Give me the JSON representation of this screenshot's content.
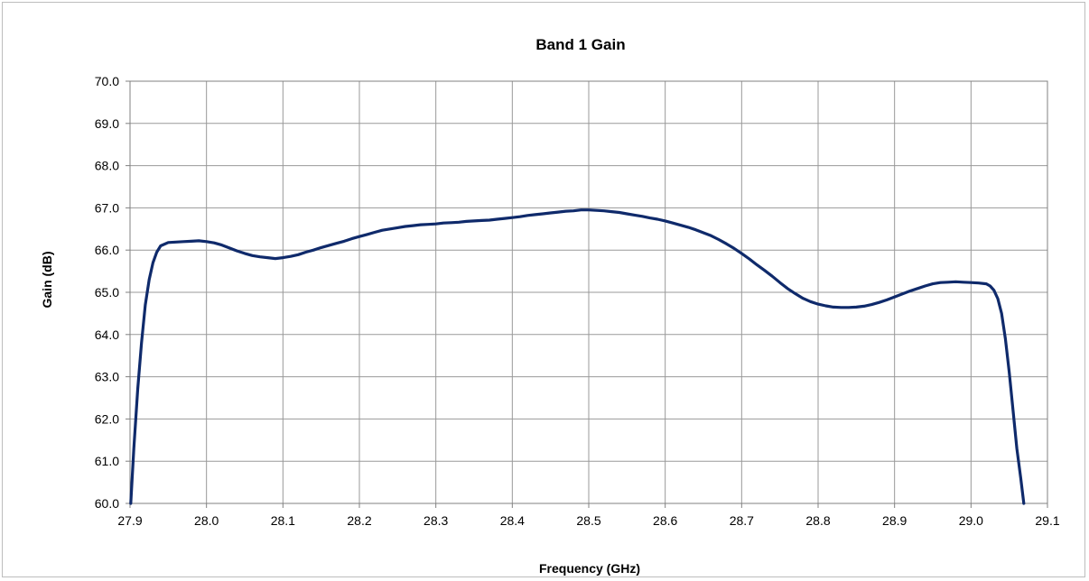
{
  "chart_data": {
    "type": "line",
    "title": "Band 1 Gain",
    "xlabel": "Frequency (GHz)",
    "ylabel": "Gain (dB)",
    "xlim": [
      27.9,
      29.1
    ],
    "ylim": [
      60.0,
      70.0
    ],
    "x_ticks": [
      "27.9",
      "28.0",
      "28.1",
      "28.2",
      "28.3",
      "28.4",
      "28.5",
      "28.6",
      "28.7",
      "28.8",
      "28.9",
      "29.0",
      "29.1"
    ],
    "y_ticks": [
      "60.0",
      "61.0",
      "62.0",
      "63.0",
      "64.0",
      "65.0",
      "66.0",
      "67.0",
      "68.0",
      "69.0",
      "70.0"
    ],
    "grid": true,
    "legend": "none",
    "series": [
      {
        "color": "#0f2a6b",
        "points": [
          [
            27.901,
            60.0
          ],
          [
            27.905,
            61.3
          ],
          [
            27.91,
            62.7
          ],
          [
            27.915,
            63.8
          ],
          [
            27.92,
            64.7
          ],
          [
            27.925,
            65.3
          ],
          [
            27.93,
            65.7
          ],
          [
            27.935,
            65.95
          ],
          [
            27.94,
            66.1
          ],
          [
            27.95,
            66.18
          ],
          [
            27.96,
            66.19
          ],
          [
            27.97,
            66.2
          ],
          [
            27.98,
            66.21
          ],
          [
            27.99,
            66.22
          ],
          [
            28.0,
            66.2
          ],
          [
            28.01,
            66.17
          ],
          [
            28.02,
            66.12
          ],
          [
            28.03,
            66.05
          ],
          [
            28.04,
            65.98
          ],
          [
            28.05,
            65.92
          ],
          [
            28.06,
            65.87
          ],
          [
            28.07,
            65.84
          ],
          [
            28.08,
            65.82
          ],
          [
            28.09,
            65.8
          ],
          [
            28.1,
            65.82
          ],
          [
            28.11,
            65.85
          ],
          [
            28.12,
            65.89
          ],
          [
            28.13,
            65.95
          ],
          [
            28.14,
            66.0
          ],
          [
            28.15,
            66.06
          ],
          [
            28.16,
            66.11
          ],
          [
            28.17,
            66.16
          ],
          [
            28.18,
            66.21
          ],
          [
            28.19,
            66.27
          ],
          [
            28.2,
            66.32
          ],
          [
            28.21,
            66.37
          ],
          [
            28.22,
            66.42
          ],
          [
            28.23,
            66.47
          ],
          [
            28.24,
            66.5
          ],
          [
            28.25,
            66.53
          ],
          [
            28.26,
            66.56
          ],
          [
            28.27,
            66.58
          ],
          [
            28.28,
            66.6
          ],
          [
            28.29,
            66.61
          ],
          [
            28.3,
            66.62
          ],
          [
            28.31,
            66.64
          ],
          [
            28.32,
            66.65
          ],
          [
            28.33,
            66.66
          ],
          [
            28.34,
            66.68
          ],
          [
            28.35,
            66.69
          ],
          [
            28.36,
            66.7
          ],
          [
            28.37,
            66.71
          ],
          [
            28.38,
            66.73
          ],
          [
            28.39,
            66.75
          ],
          [
            28.4,
            66.77
          ],
          [
            28.41,
            66.79
          ],
          [
            28.42,
            66.82
          ],
          [
            28.43,
            66.84
          ],
          [
            28.44,
            66.86
          ],
          [
            28.45,
            66.88
          ],
          [
            28.46,
            66.9
          ],
          [
            28.47,
            66.92
          ],
          [
            28.48,
            66.93
          ],
          [
            28.49,
            66.95
          ],
          [
            28.5,
            66.95
          ],
          [
            28.51,
            66.94
          ],
          [
            28.52,
            66.93
          ],
          [
            28.53,
            66.91
          ],
          [
            28.54,
            66.89
          ],
          [
            28.55,
            66.86
          ],
          [
            28.56,
            66.83
          ],
          [
            28.57,
            66.8
          ],
          [
            28.58,
            66.76
          ],
          [
            28.59,
            66.73
          ],
          [
            28.6,
            66.69
          ],
          [
            28.61,
            66.64
          ],
          [
            28.62,
            66.59
          ],
          [
            28.63,
            66.54
          ],
          [
            28.64,
            66.48
          ],
          [
            28.65,
            66.41
          ],
          [
            28.66,
            66.34
          ],
          [
            28.67,
            66.25
          ],
          [
            28.68,
            66.15
          ],
          [
            28.69,
            66.04
          ],
          [
            28.7,
            65.92
          ],
          [
            28.71,
            65.79
          ],
          [
            28.72,
            65.65
          ],
          [
            28.73,
            65.52
          ],
          [
            28.74,
            65.38
          ],
          [
            28.75,
            65.23
          ],
          [
            28.76,
            65.09
          ],
          [
            28.77,
            64.97
          ],
          [
            28.78,
            64.86
          ],
          [
            28.79,
            64.78
          ],
          [
            28.8,
            64.72
          ],
          [
            28.81,
            64.68
          ],
          [
            28.82,
            64.65
          ],
          [
            28.83,
            64.64
          ],
          [
            28.84,
            64.64
          ],
          [
            28.85,
            64.65
          ],
          [
            28.86,
            64.67
          ],
          [
            28.87,
            64.71
          ],
          [
            28.88,
            64.76
          ],
          [
            28.89,
            64.82
          ],
          [
            28.9,
            64.89
          ],
          [
            28.91,
            64.96
          ],
          [
            28.92,
            65.03
          ],
          [
            28.93,
            65.09
          ],
          [
            28.94,
            65.15
          ],
          [
            28.95,
            65.2
          ],
          [
            28.96,
            65.23
          ],
          [
            28.97,
            65.24
          ],
          [
            28.98,
            65.25
          ],
          [
            28.99,
            65.24
          ],
          [
            29.0,
            65.23
          ],
          [
            29.01,
            65.22
          ],
          [
            29.02,
            65.2
          ],
          [
            29.025,
            65.15
          ],
          [
            29.03,
            65.05
          ],
          [
            29.035,
            64.85
          ],
          [
            29.04,
            64.5
          ],
          [
            29.045,
            63.9
          ],
          [
            29.05,
            63.1
          ],
          [
            29.055,
            62.2
          ],
          [
            29.06,
            61.3
          ],
          [
            29.065,
            60.6
          ],
          [
            29.069,
            60.0
          ]
        ]
      }
    ]
  }
}
